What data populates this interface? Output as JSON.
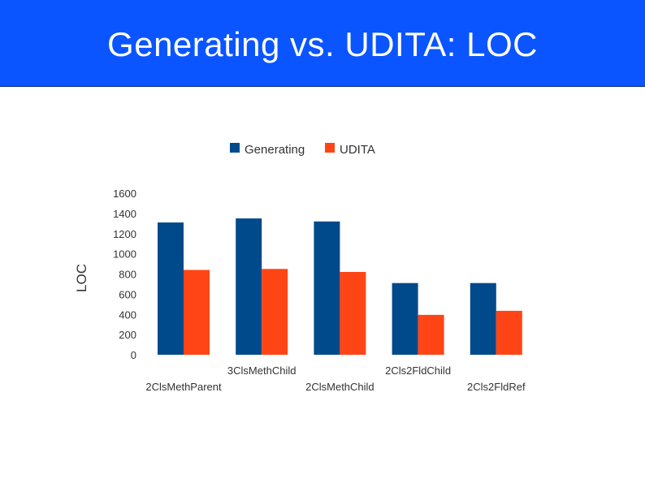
{
  "slide": {
    "title": "Generating vs. UDITA: LOC"
  },
  "colors": {
    "title_bg": "#0a55ff",
    "generating": "#004a8c",
    "udita": "#ff4515"
  },
  "chart_data": {
    "type": "bar",
    "title": "",
    "xlabel": "",
    "ylabel": "LOC",
    "ylim": [
      0,
      1600
    ],
    "yticks": [
      0,
      200,
      400,
      600,
      800,
      1000,
      1200,
      1400,
      1600
    ],
    "grid": false,
    "legend_position": "top",
    "categories": [
      "2ClsMethParent",
      "3ClsMethChild",
      "2ClsMethChild",
      "2Cls2FldChild",
      "2Cls2FldRef"
    ],
    "series": [
      {
        "name": "Generating",
        "values": [
          1310,
          1350,
          1320,
          710,
          710
        ]
      },
      {
        "name": "UDITA",
        "values": [
          840,
          850,
          820,
          395,
          435
        ]
      }
    ]
  }
}
